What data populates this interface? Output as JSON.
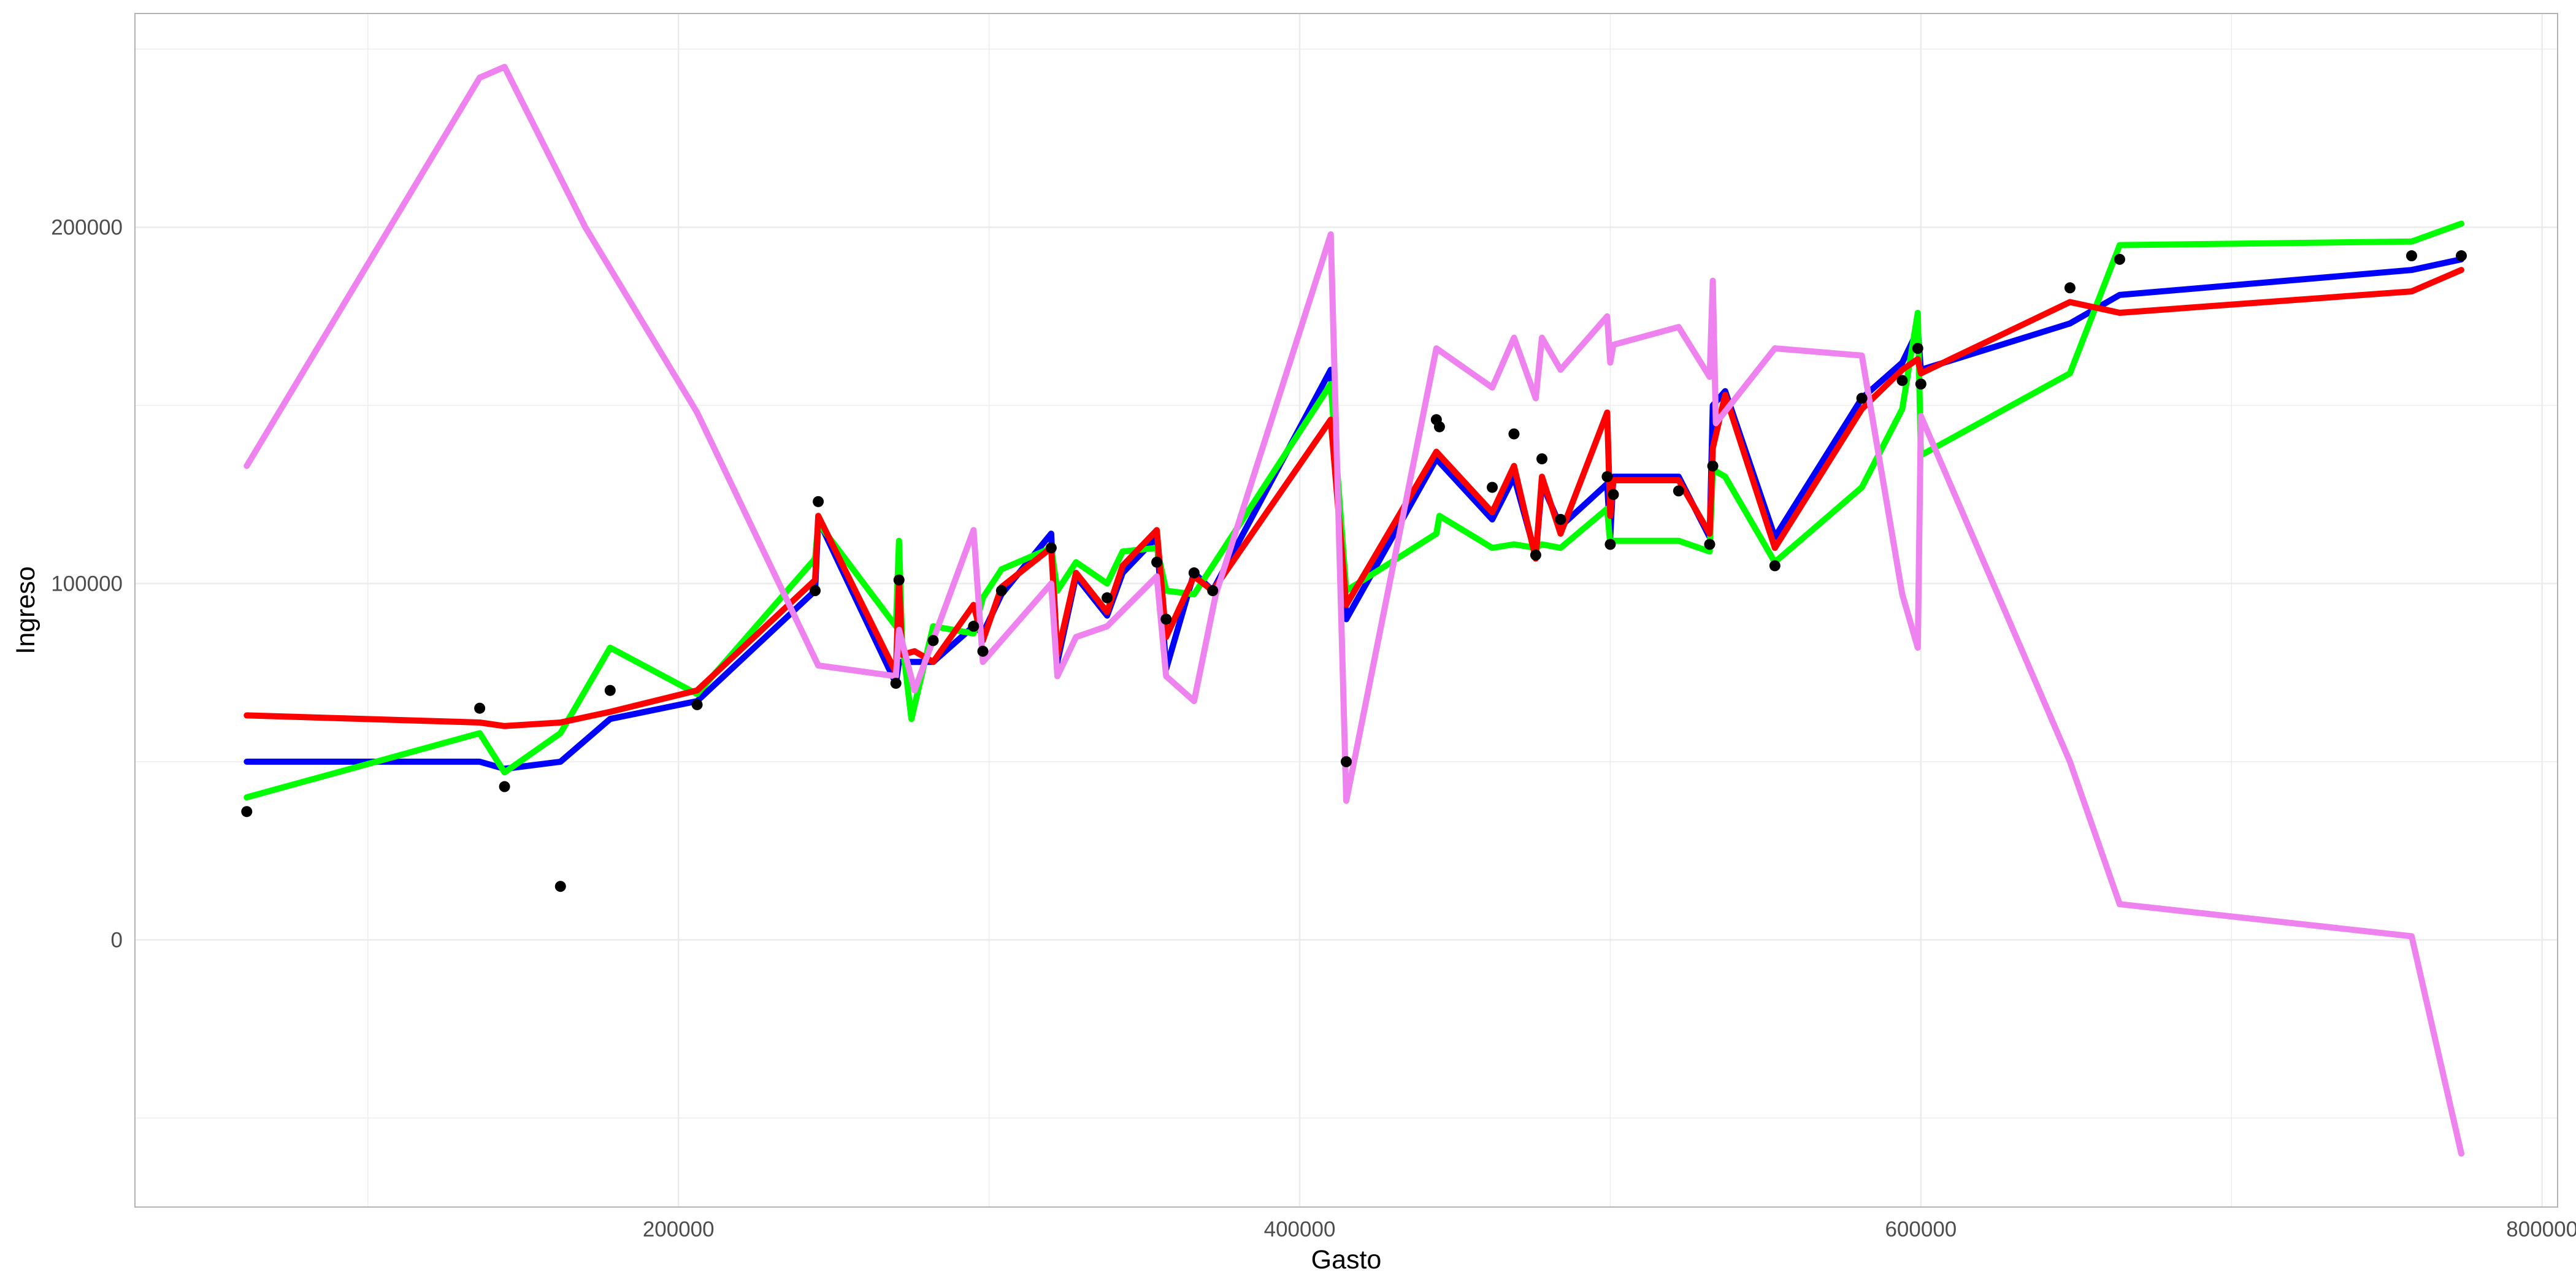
{
  "chart_data": {
    "type": "line",
    "title": "",
    "xlabel": "Gasto",
    "ylabel": "Ingreso",
    "xlim": [
      25000,
      805000
    ],
    "ylim": [
      -75000,
      260000
    ],
    "x_ticks": [
      200000,
      400000,
      600000,
      800000
    ],
    "y_ticks": [
      0,
      100000,
      200000
    ],
    "x_tick_labels": [
      "200000",
      "400000",
      "600000",
      "800000"
    ],
    "y_tick_labels": [
      "0",
      "100000",
      "200000"
    ],
    "grid": true,
    "legend": "none",
    "colors": {
      "points": "#000000",
      "blue": "#0000ff",
      "green": "#00ff00",
      "red": "#ff0000",
      "violet": "#ee82ee",
      "grid": "#ebebeb",
      "panel_border": "#b3b3b3"
    },
    "points": [
      [
        61000,
        36000
      ],
      [
        136000,
        65000
      ],
      [
        144000,
        43000
      ],
      [
        162000,
        15000
      ],
      [
        178000,
        70000
      ],
      [
        206000,
        66000
      ],
      [
        244000,
        98000
      ],
      [
        245000,
        123000
      ],
      [
        270000,
        72000
      ],
      [
        271000,
        101000
      ],
      [
        282000,
        84000
      ],
      [
        295000,
        88000
      ],
      [
        298000,
        81000
      ],
      [
        304000,
        98000
      ],
      [
        320000,
        110000
      ],
      [
        338000,
        96000
      ],
      [
        354000,
        106000
      ],
      [
        357000,
        90000
      ],
      [
        366000,
        103000
      ],
      [
        372000,
        98000
      ],
      [
        415000,
        50000
      ],
      [
        444000,
        146000
      ],
      [
        445000,
        144000
      ],
      [
        462000,
        127000
      ],
      [
        469000,
        142000
      ],
      [
        476000,
        108000
      ],
      [
        478000,
        135000
      ],
      [
        484000,
        118000
      ],
      [
        499000,
        130000
      ],
      [
        500000,
        111000
      ],
      [
        501000,
        125000
      ],
      [
        522000,
        126000
      ],
      [
        532000,
        111000
      ],
      [
        533000,
        133000
      ],
      [
        553000,
        105000
      ],
      [
        581000,
        152000
      ],
      [
        594000,
        157000
      ],
      [
        599000,
        166000
      ],
      [
        600000,
        156000
      ],
      [
        648000,
        183000
      ],
      [
        664000,
        191000
      ],
      [
        758000,
        192000
      ],
      [
        774000,
        192000
      ]
    ],
    "series": [
      {
        "color": "blue",
        "x": [
          61000,
          136000,
          144000,
          162000,
          178000,
          206000,
          244000,
          245000,
          270000,
          271000,
          282000,
          295000,
          298000,
          304000,
          320000,
          322000,
          328000,
          338000,
          343000,
          354000,
          357000,
          366000,
          372000,
          410000,
          415000,
          444000,
          462000,
          469000,
          476000,
          478000,
          484000,
          499000,
          500000,
          501000,
          522000,
          532000,
          533000,
          537000,
          553000,
          581000,
          594000,
          599000,
          600000,
          648000,
          664000,
          758000,
          774000
        ],
        "y": [
          50000,
          50000,
          48000,
          50000,
          62000,
          67000,
          98000,
          118000,
          72000,
          78000,
          78000,
          88000,
          86000,
          97000,
          114000,
          78000,
          102000,
          91000,
          103000,
          113000,
          76000,
          103000,
          98000,
          160000,
          90000,
          135000,
          118000,
          130000,
          108000,
          128000,
          116000,
          128000,
          113000,
          130000,
          130000,
          113000,
          150000,
          154000,
          113000,
          152000,
          162000,
          171000,
          160000,
          173000,
          181000,
          188000,
          191000
        ]
      },
      {
        "color": "green",
        "x": [
          61000,
          136000,
          144000,
          162000,
          178000,
          206000,
          244000,
          245000,
          270000,
          271000,
          272000,
          275000,
          282000,
          295000,
          298000,
          304000,
          320000,
          322000,
          328000,
          338000,
          343000,
          354000,
          357000,
          366000,
          372000,
          410000,
          415000,
          444000,
          445000,
          462000,
          469000,
          476000,
          478000,
          484000,
          499000,
          500000,
          501000,
          522000,
          532000,
          533000,
          537000,
          553000,
          581000,
          594000,
          599000,
          600000,
          648000,
          664000,
          758000,
          774000
        ],
        "y": [
          40000,
          58000,
          47000,
          58000,
          82000,
          69000,
          107000,
          117000,
          88000,
          112000,
          84000,
          62000,
          88000,
          86000,
          96000,
          104000,
          110000,
          98000,
          106000,
          100000,
          109000,
          110000,
          98000,
          97000,
          105000,
          156000,
          98000,
          114000,
          119000,
          110000,
          111000,
          110000,
          111000,
          110000,
          121000,
          111000,
          112000,
          112000,
          109000,
          132000,
          130000,
          106000,
          127000,
          149000,
          176000,
          136000,
          159000,
          195000,
          196000,
          201000
        ]
      },
      {
        "color": "red",
        "x": [
          61000,
          136000,
          144000,
          162000,
          178000,
          206000,
          244000,
          245000,
          270000,
          271000,
          272000,
          276000,
          282000,
          295000,
          298000,
          304000,
          320000,
          322000,
          328000,
          338000,
          343000,
          354000,
          357000,
          366000,
          372000,
          410000,
          415000,
          444000,
          462000,
          469000,
          476000,
          478000,
          484000,
          499000,
          500000,
          501000,
          522000,
          532000,
          533000,
          537000,
          553000,
          581000,
          594000,
          599000,
          600000,
          648000,
          664000,
          758000,
          774000
        ],
        "y": [
          63000,
          61000,
          60000,
          61000,
          64000,
          70000,
          101000,
          119000,
          75000,
          101000,
          80000,
          81000,
          78000,
          94000,
          84000,
          99000,
          110000,
          80000,
          103000,
          92000,
          105000,
          115000,
          85000,
          102000,
          98000,
          146000,
          94000,
          137000,
          120000,
          133000,
          107000,
          130000,
          114000,
          148000,
          119000,
          129000,
          129000,
          114000,
          138000,
          153000,
          110000,
          149000,
          160000,
          163000,
          159000,
          179000,
          176000,
          182000,
          188000
        ]
      },
      {
        "color": "violet",
        "x": [
          61000,
          136000,
          144000,
          170000,
          206000,
          245000,
          270000,
          271000,
          276000,
          295000,
          298000,
          320000,
          322000,
          328000,
          338000,
          354000,
          357000,
          366000,
          373000,
          410000,
          415000,
          444000,
          462000,
          469000,
          476000,
          478000,
          484000,
          499000,
          500000,
          501000,
          522000,
          532000,
          533000,
          534000,
          553000,
          581000,
          594000,
          599000,
          600000,
          648000,
          664000,
          758000,
          774000
        ],
        "y": [
          133000,
          242000,
          245000,
          200000,
          148000,
          77000,
          74000,
          87000,
          70000,
          115000,
          78000,
          100000,
          74000,
          85000,
          88000,
          102000,
          74000,
          67000,
          97000,
          198000,
          39000,
          166000,
          155000,
          169000,
          152000,
          169000,
          160000,
          175000,
          162000,
          167000,
          172000,
          158000,
          185000,
          145000,
          166000,
          164000,
          97000,
          82000,
          147000,
          50000,
          10000,
          1000,
          -60000
        ]
      }
    ]
  }
}
